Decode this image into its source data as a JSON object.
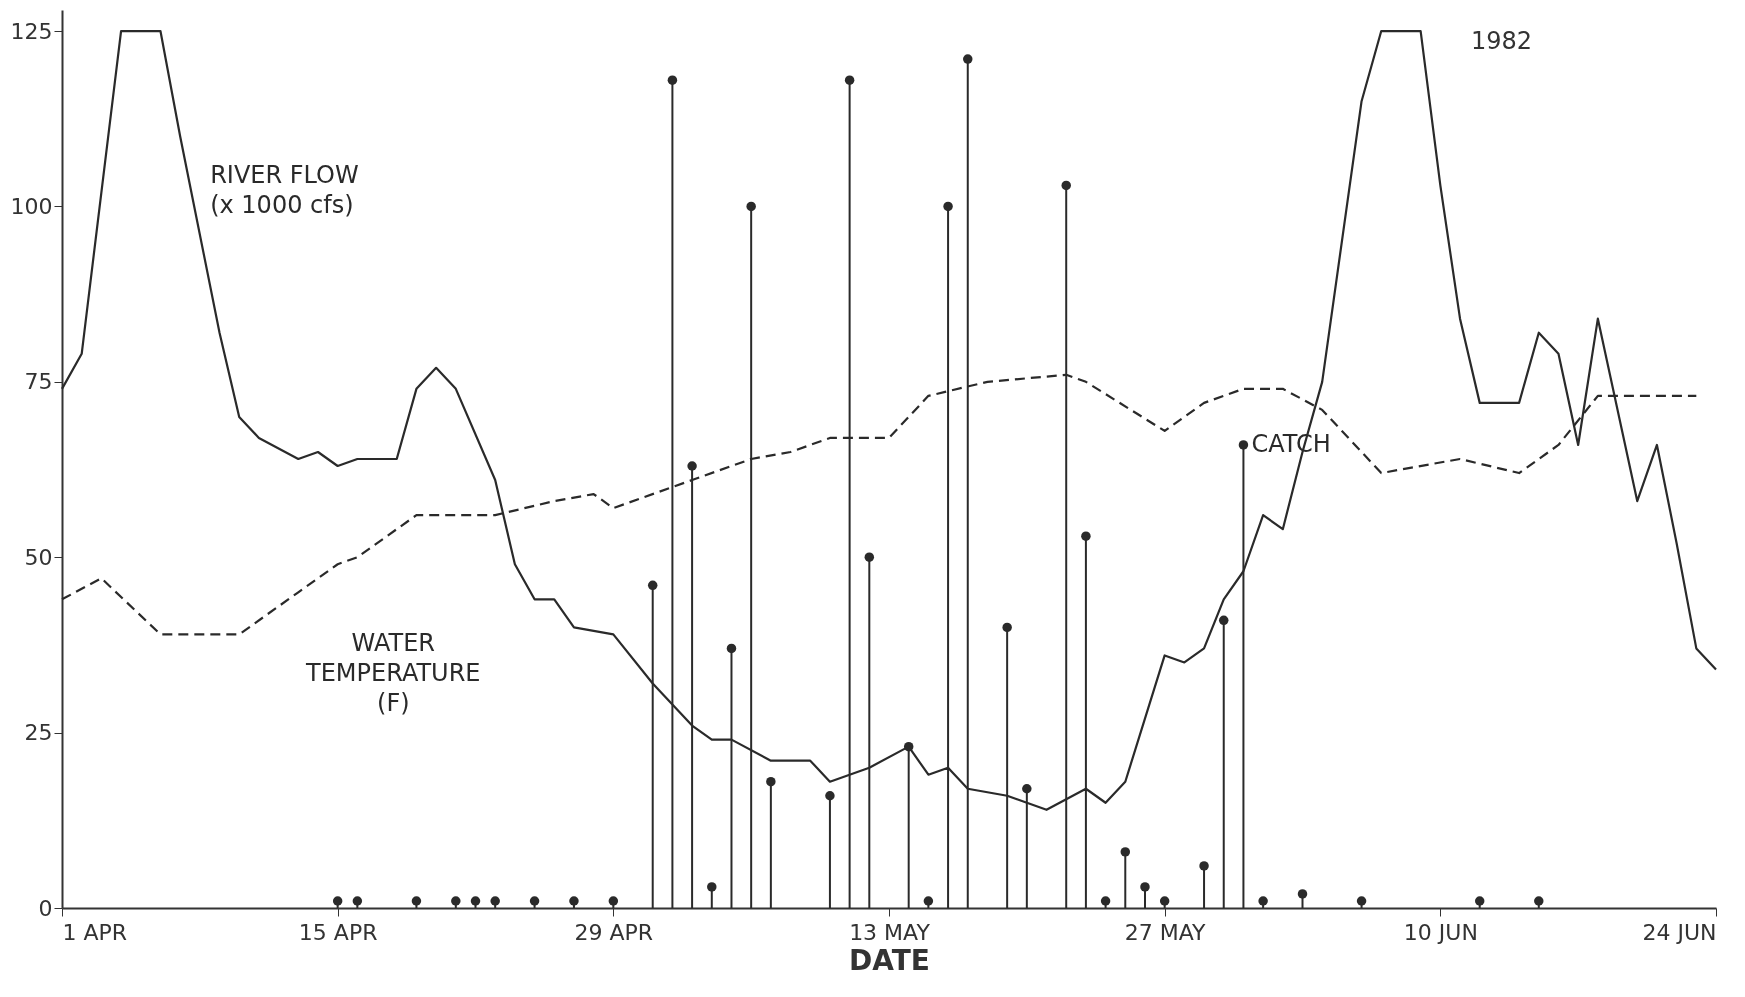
{
  "chart_data": {
    "type": "line",
    "xlabel": "DATE",
    "annotations": [
      "1982"
    ],
    "xlim": [
      "1982-04-01",
      "1982-06-24"
    ],
    "xticks": [
      {
        "value": "1982-04-01",
        "label": "1 APR"
      },
      {
        "value": "1982-04-15",
        "label": "15 APR"
      },
      {
        "value": "1982-04-29",
        "label": "29 APR"
      },
      {
        "value": "1982-05-13",
        "label": "13 MAY"
      },
      {
        "value": "1982-05-27",
        "label": "27 MAY"
      },
      {
        "value": "1982-06-10",
        "label": "10 JUN"
      },
      {
        "value": "1982-06-24",
        "label": "24 JUN"
      }
    ],
    "ylim": [
      0,
      128
    ],
    "yticks": [
      0,
      25,
      50,
      75,
      100,
      125
    ],
    "grid": false,
    "series": [
      {
        "name": "RIVER FLOW\n(x 1000 cfs)",
        "line_style": "solid",
        "marker": "none",
        "color": "#2a2a2a",
        "x": [
          "1982-04-01",
          "1982-04-02",
          "1982-04-04",
          "1982-04-06",
          "1982-04-07",
          "1982-04-09",
          "1982-04-10",
          "1982-04-11",
          "1982-04-13",
          "1982-04-14",
          "1982-04-15",
          "1982-04-16",
          "1982-04-18",
          "1982-04-19",
          "1982-04-20",
          "1982-04-21",
          "1982-04-23",
          "1982-04-24",
          "1982-04-25",
          "1982-04-26",
          "1982-04-27",
          "1982-04-29",
          "1982-05-01",
          "1982-05-03",
          "1982-05-04",
          "1982-05-05",
          "1982-05-07",
          "1982-05-09",
          "1982-05-10",
          "1982-05-12",
          "1982-05-14",
          "1982-05-15",
          "1982-05-16",
          "1982-05-17",
          "1982-05-19",
          "1982-05-21",
          "1982-05-23",
          "1982-05-24",
          "1982-05-25",
          "1982-05-27",
          "1982-05-28",
          "1982-05-29",
          "1982-05-30",
          "1982-05-31",
          "1982-06-01",
          "1982-06-02",
          "1982-06-03",
          "1982-06-04",
          "1982-06-06",
          "1982-06-07",
          "1982-06-09",
          "1982-06-10",
          "1982-06-11",
          "1982-06-12",
          "1982-06-14",
          "1982-06-15",
          "1982-06-16",
          "1982-06-17",
          "1982-06-18",
          "1982-06-20",
          "1982-06-21",
          "1982-06-22",
          "1982-06-23",
          "1982-06-24"
        ],
        "values": [
          74,
          79,
          125,
          125,
          110,
          82,
          70,
          67,
          64,
          65,
          63,
          64,
          64,
          74,
          77,
          74,
          61,
          49,
          44,
          44,
          40,
          39,
          32,
          26,
          24,
          24,
          21,
          21,
          18,
          20,
          23,
          19,
          20,
          17,
          16,
          14,
          17,
          15,
          18,
          36,
          35,
          37,
          44,
          48,
          56,
          54,
          65,
          75,
          115,
          125,
          125,
          103,
          84,
          72,
          72,
          82,
          79,
          66,
          84,
          58,
          66,
          52,
          37,
          34
        ]
      },
      {
        "name": "WATER\nTEMPERATURE\n(F)",
        "line_style": "dashed",
        "marker": "none",
        "color": "#2a2a2a",
        "x": [
          "1982-04-01",
          "1982-04-03",
          "1982-04-06",
          "1982-04-10",
          "1982-04-13",
          "1982-04-15",
          "1982-04-16",
          "1982-04-19",
          "1982-04-23",
          "1982-04-26",
          "1982-04-28",
          "1982-04-29",
          "1982-05-03",
          "1982-05-06",
          "1982-05-08",
          "1982-05-10",
          "1982-05-13",
          "1982-05-15",
          "1982-05-18",
          "1982-05-22",
          "1982-05-23",
          "1982-05-27",
          "1982-05-29",
          "1982-05-31",
          "1982-06-02",
          "1982-06-04",
          "1982-06-07",
          "1982-06-11",
          "1982-06-14",
          "1982-06-16",
          "1982-06-18",
          "1982-06-23"
        ],
        "values": [
          44,
          47,
          39,
          39,
          45,
          49,
          50,
          56,
          56,
          58,
          59,
          57,
          61,
          64,
          65,
          67,
          67,
          73,
          75,
          76,
          75,
          68,
          72,
          74,
          74,
          71,
          62,
          64,
          62,
          66,
          73,
          73
        ]
      },
      {
        "name": "CATCH",
        "type": "lollipop",
        "marker": "circle",
        "color": "#2a2a2a",
        "x": [
          "1982-04-15",
          "1982-04-16",
          "1982-04-19",
          "1982-04-21",
          "1982-04-22",
          "1982-04-23",
          "1982-04-25",
          "1982-04-27",
          "1982-04-29",
          "1982-05-01",
          "1982-05-02",
          "1982-05-03",
          "1982-05-04",
          "1982-05-05",
          "1982-05-06",
          "1982-05-07",
          "1982-05-10",
          "1982-05-11",
          "1982-05-12",
          "1982-05-14",
          "1982-05-15",
          "1982-05-16",
          "1982-05-17",
          "1982-05-19",
          "1982-05-20",
          "1982-05-22",
          "1982-05-23",
          "1982-05-24",
          "1982-05-25",
          "1982-05-26",
          "1982-05-27",
          "1982-05-29",
          "1982-05-30",
          "1982-05-31",
          "1982-06-01",
          "1982-06-03",
          "1982-06-06",
          "1982-06-12",
          "1982-06-15"
        ],
        "values": [
          1,
          1,
          1,
          1,
          1,
          1,
          1,
          1,
          1,
          46,
          118,
          63,
          3,
          37,
          100,
          18,
          16,
          118,
          50,
          23,
          1,
          100,
          121,
          40,
          17,
          103,
          53,
          1,
          8,
          3,
          1,
          6,
          41,
          66,
          1,
          2,
          1,
          1,
          1
        ]
      }
    ]
  }
}
